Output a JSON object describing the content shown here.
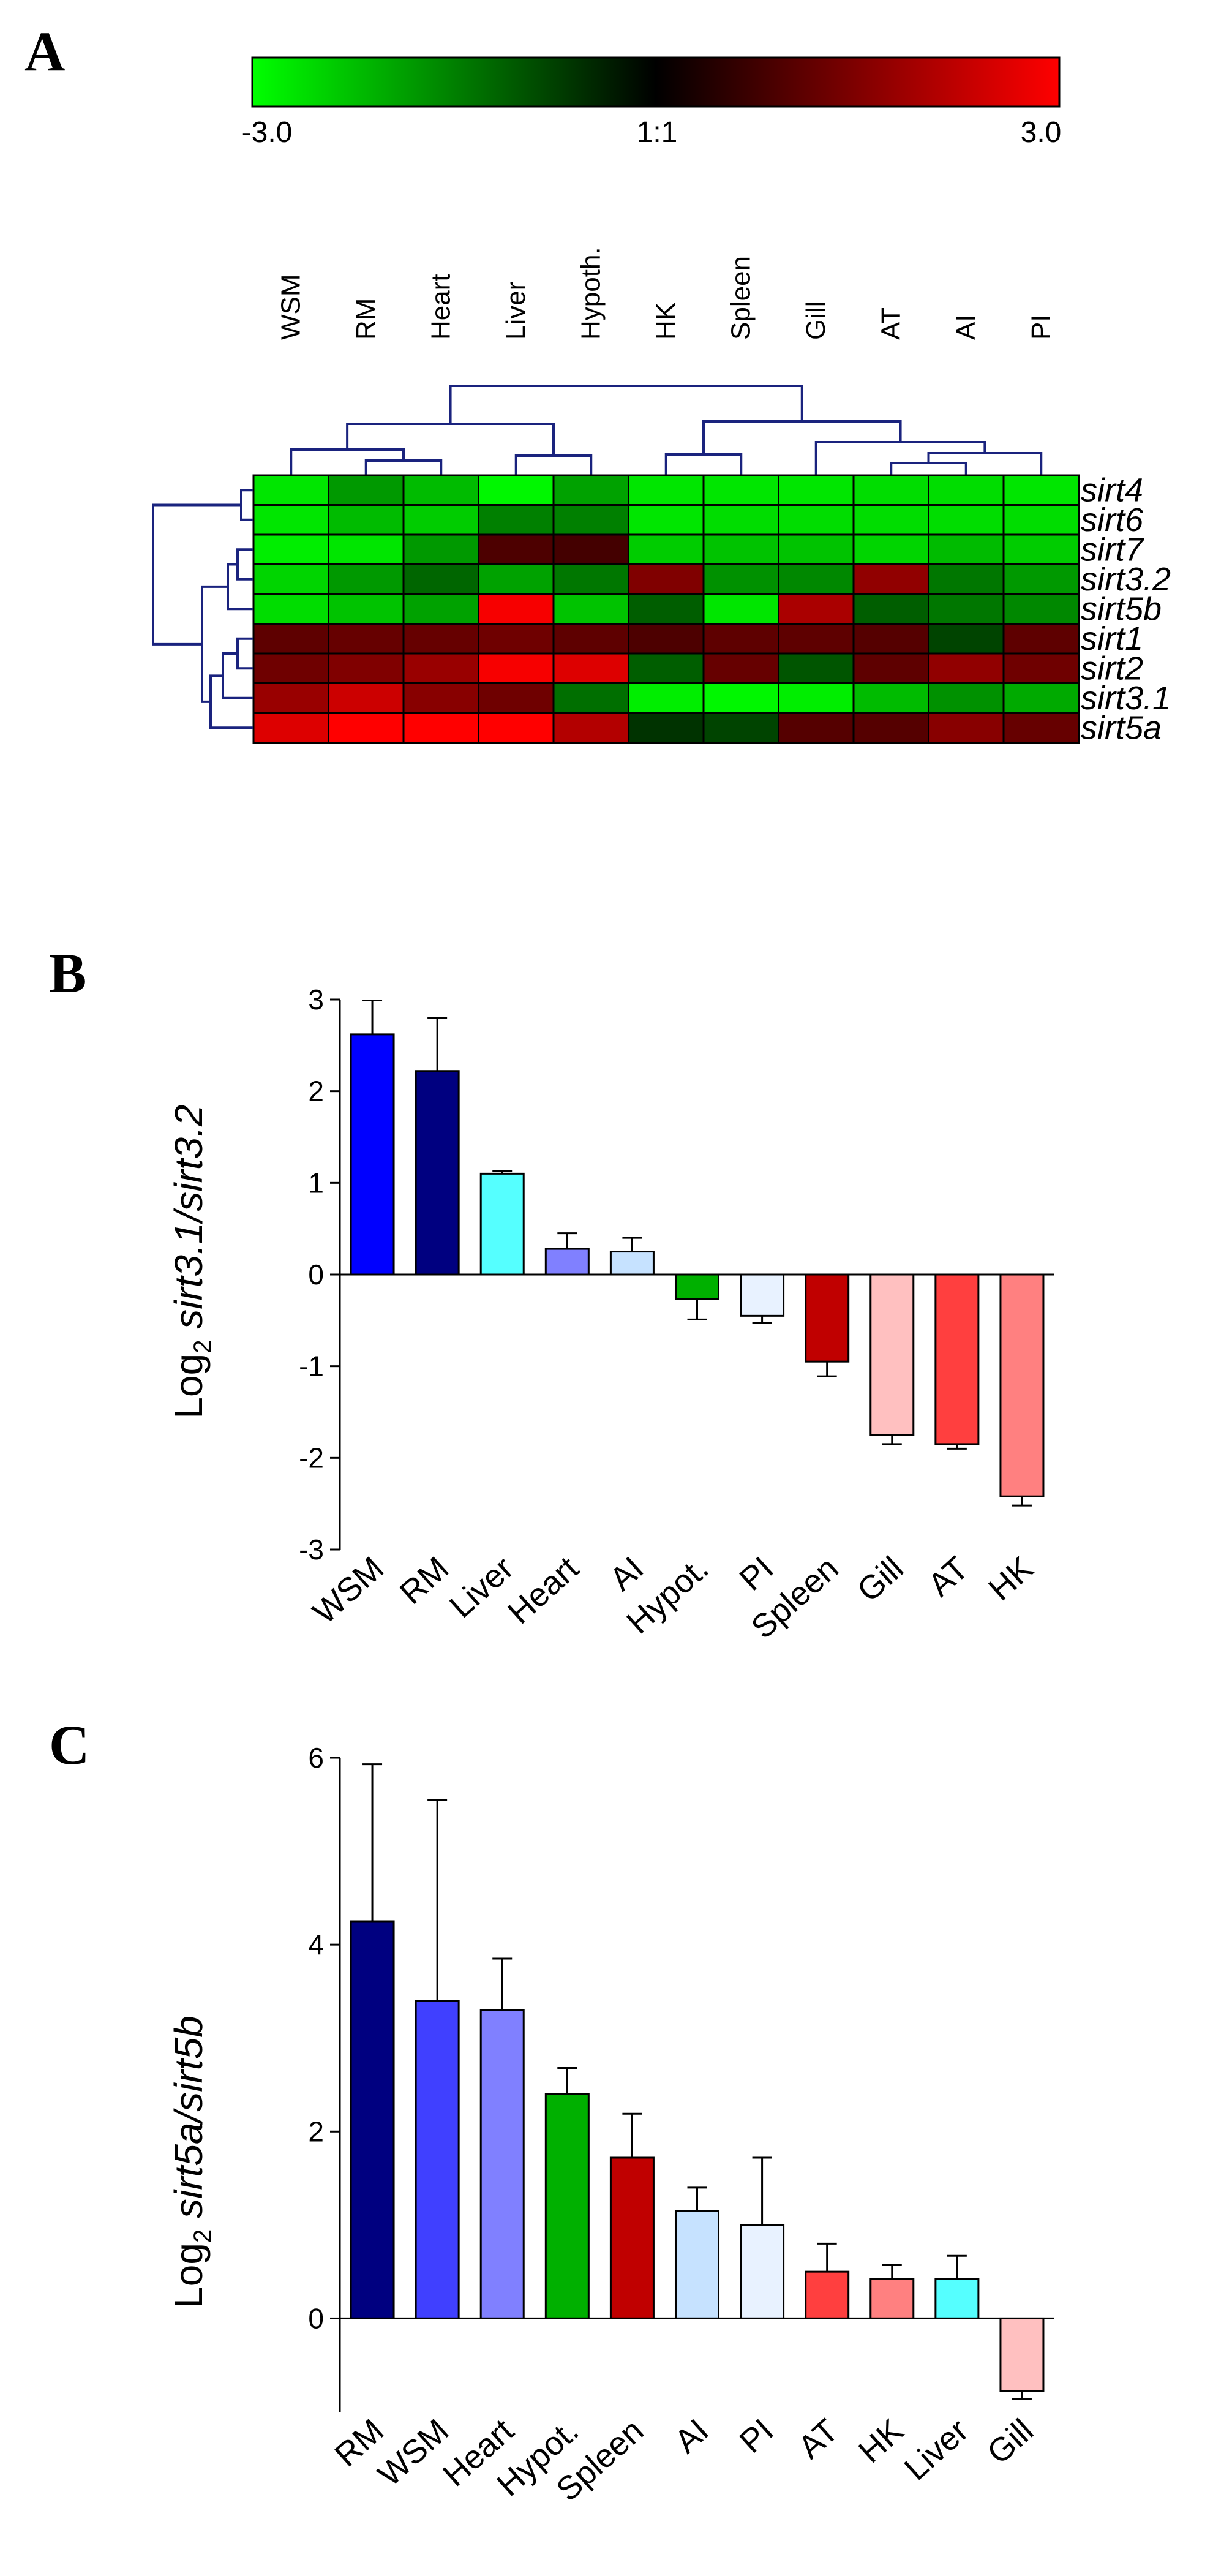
{
  "panels": {
    "a": "A",
    "b": "B",
    "c": "C"
  },
  "chart_data": [
    {
      "type": "heatmap",
      "panel": "A",
      "color_scale": {
        "min_label": "-3.0",
        "mid_label": "1:1",
        "max_label": "3.0",
        "min": -3.0,
        "max": 3.0,
        "colors": [
          "#00ff00",
          "#000000",
          "#ff0000"
        ]
      },
      "columns": [
        "WSM",
        "RM",
        "Heart",
        "Liver",
        "Hypoth.",
        "HK",
        "Spleen",
        "Gill",
        "AT",
        "AI",
        "PI"
      ],
      "rows": [
        "sirt4",
        "sirt6",
        "sirt7",
        "sirt3.2",
        "sirt5b",
        "sirt1",
        "sirt2",
        "sirt3.1",
        "sirt5a"
      ],
      "values": [
        [
          -2.7,
          -1.8,
          -2.2,
          -2.9,
          -1.9,
          -2.7,
          -2.7,
          -2.7,
          -2.6,
          -2.6,
          -2.7
        ],
        [
          -2.7,
          -2.2,
          -2.4,
          -1.5,
          -1.5,
          -2.7,
          -2.6,
          -2.6,
          -2.6,
          -2.6,
          -2.6
        ],
        [
          -2.8,
          -2.7,
          -1.8,
          0.9,
          0.8,
          -2.4,
          -2.3,
          -2.3,
          -2.5,
          -2.2,
          -2.4
        ],
        [
          -2.5,
          -1.8,
          -1.2,
          -1.9,
          -1.4,
          1.5,
          -1.7,
          -1.6,
          1.7,
          -1.4,
          -1.8
        ],
        [
          -2.6,
          -2.3,
          -1.9,
          2.9,
          -2.3,
          -1.1,
          -2.7,
          2.0,
          -1.1,
          -1.4,
          -1.6
        ],
        [
          1.1,
          1.2,
          1.2,
          1.3,
          1.1,
          0.9,
          1.1,
          1.1,
          1.0,
          -0.8,
          1.1
        ],
        [
          1.3,
          1.5,
          1.8,
          2.9,
          2.6,
          -1.1,
          1.2,
          -1.0,
          1.1,
          1.7,
          1.3
        ],
        [
          1.8,
          2.4,
          1.6,
          1.3,
          -1.3,
          -2.8,
          -2.9,
          -2.8,
          -2.2,
          -1.7,
          -2.0
        ],
        [
          2.6,
          3.0,
          3.0,
          3.0,
          2.1,
          -0.6,
          -0.8,
          1.0,
          1.0,
          1.6,
          1.2
        ]
      ]
    },
    {
      "type": "bar",
      "panel": "B",
      "categories": [
        "WSM",
        "RM",
        "Liver",
        "Heart",
        "AI",
        "Hypot.",
        "PI",
        "Spleen",
        "Gill",
        "AT",
        "HK"
      ],
      "values": [
        2.62,
        2.22,
        1.1,
        0.28,
        0.25,
        -0.27,
        -0.45,
        -0.95,
        -1.75,
        -1.85,
        -2.42
      ],
      "errors": [
        0.37,
        0.58,
        0.03,
        0.17,
        0.15,
        0.22,
        0.08,
        0.16,
        0.1,
        0.05,
        0.1
      ],
      "colors": [
        "#0000ff",
        "#000080",
        "#55ffff",
        "#8080ff",
        "#c6e2ff",
        "#00b000",
        "#e8f2ff",
        "#c00000",
        "#ffc0c0",
        "#ff3f3f",
        "#ff8080"
      ],
      "ylabel_prefix": "Log",
      "ylabel_sub": "2",
      "ylabel_text": "sirt3.1/sirt3.2",
      "ylim": [
        -3,
        3
      ],
      "yticks": [
        "3",
        "2",
        "1",
        "0",
        "-1",
        "-2",
        "-3"
      ]
    },
    {
      "type": "bar",
      "panel": "C",
      "categories": [
        "RM",
        "WSM",
        "Heart",
        "Hypot.",
        "Spleen",
        "AI",
        "PI",
        "AT",
        "HK",
        "Liver",
        "Gill"
      ],
      "values": [
        4.25,
        3.4,
        3.3,
        2.4,
        1.72,
        1.15,
        1.0,
        0.5,
        0.42,
        0.42,
        -0.78
      ],
      "errors": [
        1.68,
        2.15,
        0.55,
        0.28,
        0.47,
        0.25,
        0.72,
        0.3,
        0.15,
        0.25,
        0.08
      ],
      "colors": [
        "#000080",
        "#4040ff",
        "#8080ff",
        "#00b000",
        "#c00000",
        "#c6e2ff",
        "#e8f2ff",
        "#ff3f3f",
        "#ff8080",
        "#55ffff",
        "#ffc0c0"
      ],
      "ylabel_prefix": "Log",
      "ylabel_sub": "2",
      "ylabel_text": "sirt5a/sirt5b",
      "ylim": [
        -1,
        6
      ],
      "yticks": [
        "6",
        "4",
        "2",
        "0"
      ]
    }
  ]
}
